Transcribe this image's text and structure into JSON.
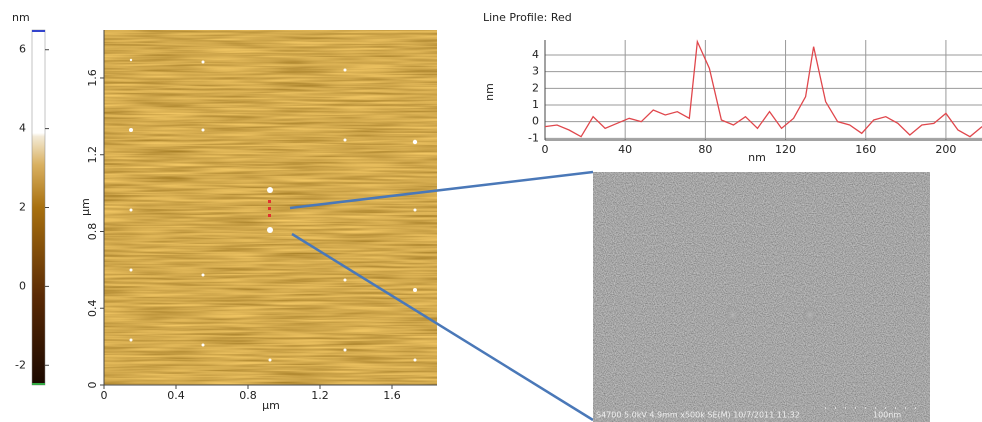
{
  "colorbar": {
    "unit": "nm",
    "lim": [
      -2.5,
      6.5
    ],
    "ticks": [
      -2,
      0,
      2,
      4,
      6
    ]
  },
  "afm_image": {
    "xlabel": "μm",
    "ylabel": "μm",
    "xlim": [
      0,
      1.85
    ],
    "ylim": [
      0,
      1.85
    ],
    "xticks": [
      0,
      0.4,
      0.8,
      1.2,
      1.6
    ],
    "yticks": [
      0,
      0.4,
      0.8,
      1.2,
      1.6
    ]
  },
  "chart_data": {
    "type": "line",
    "title": "Line Profile: Red",
    "xlabel": "nm",
    "ylabel": "nm",
    "color": "#e0474c",
    "x": [
      0,
      6,
      12,
      18,
      24,
      30,
      36,
      42,
      48,
      54,
      60,
      66,
      72,
      76,
      82,
      88,
      94,
      100,
      106,
      112,
      118,
      124,
      130,
      134,
      140,
      146,
      152,
      158,
      164,
      170,
      176,
      182,
      188,
      194,
      200,
      206,
      212,
      218
    ],
    "values": [
      -0.3,
      -0.2,
      -0.5,
      -0.9,
      0.3,
      -0.4,
      -0.1,
      0.2,
      0,
      0.7,
      0.4,
      0.6,
      0.2,
      4.8,
      3.2,
      0.1,
      -0.2,
      0.3,
      -0.4,
      0.6,
      -0.4,
      0.2,
      1.5,
      4.5,
      1.2,
      0,
      -0.2,
      -0.7,
      0.1,
      0.3,
      -0.1,
      -0.8,
      -0.2,
      -0.1,
      0.5,
      -0.5,
      -0.9,
      -0.3
    ],
    "xlim": [
      0,
      218
    ],
    "ylim": [
      -1.1,
      4.9
    ],
    "xticks": [
      0,
      40,
      80,
      120,
      160,
      200
    ],
    "yticks": [
      -1,
      0,
      1,
      2,
      3,
      4
    ],
    "grid": true
  },
  "sem_image": {
    "info": "S4700 5.0kV 4.9mm x500k SE(M) 10/7/2011 11:32",
    "scale": "100nm"
  }
}
